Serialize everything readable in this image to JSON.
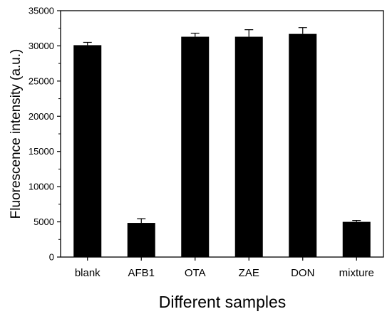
{
  "chart_data": {
    "type": "bar",
    "title": "",
    "xlabel": "Different samples",
    "ylabel": "Fluorescence intensity (a.u.)",
    "categories": [
      "blank",
      "AFB1",
      "OTA",
      "ZAE",
      "DON",
      "mixture"
    ],
    "values": [
      30100,
      4850,
      31300,
      31300,
      31700,
      5000
    ],
    "errors": [
      400,
      600,
      500,
      1000,
      900,
      200
    ],
    "ylim": [
      0,
      35000
    ],
    "yticks": [
      "0",
      "5000",
      "10000",
      "15000",
      "20000",
      "25000",
      "30000",
      "35000"
    ],
    "grid": false,
    "legend": "none",
    "bar_color": "#000000"
  }
}
